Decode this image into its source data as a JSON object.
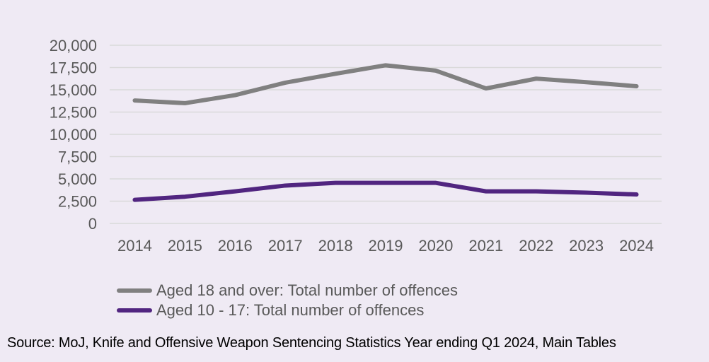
{
  "chart_data": {
    "type": "line",
    "title": "",
    "xlabel": "",
    "ylabel": "",
    "x": [
      "2014",
      "2015",
      "2016",
      "2017",
      "2018",
      "2019",
      "2020",
      "2021",
      "2022",
      "2023",
      "2024"
    ],
    "ylim": [
      0,
      20000
    ],
    "yticks": [
      0,
      2500,
      5000,
      7500,
      10000,
      12500,
      15000,
      17500,
      20000
    ],
    "ytick_labels": [
      "0",
      "2,500",
      "5,000",
      "7,500",
      "10,000",
      "12,500",
      "15,000",
      "17,500",
      "20,000"
    ],
    "grid": true,
    "legend_position": "bottom-left",
    "series": [
      {
        "name": "Aged 18 and over: Total number of offences",
        "color": "#808080",
        "values": [
          13800,
          13500,
          14400,
          15800,
          16800,
          17750,
          17150,
          15150,
          16250,
          15850,
          15400
        ]
      },
      {
        "name": "Aged 10 - 17: Total number of offences",
        "color": "#512580",
        "values": [
          2650,
          3000,
          3600,
          4250,
          4550,
          4550,
          4550,
          3600,
          3600,
          3450,
          3250
        ]
      }
    ]
  },
  "source": "Source: MoJ, Knife and Offensive Weapon Sentencing Statistics Year ending Q1 2024, Main Tables"
}
